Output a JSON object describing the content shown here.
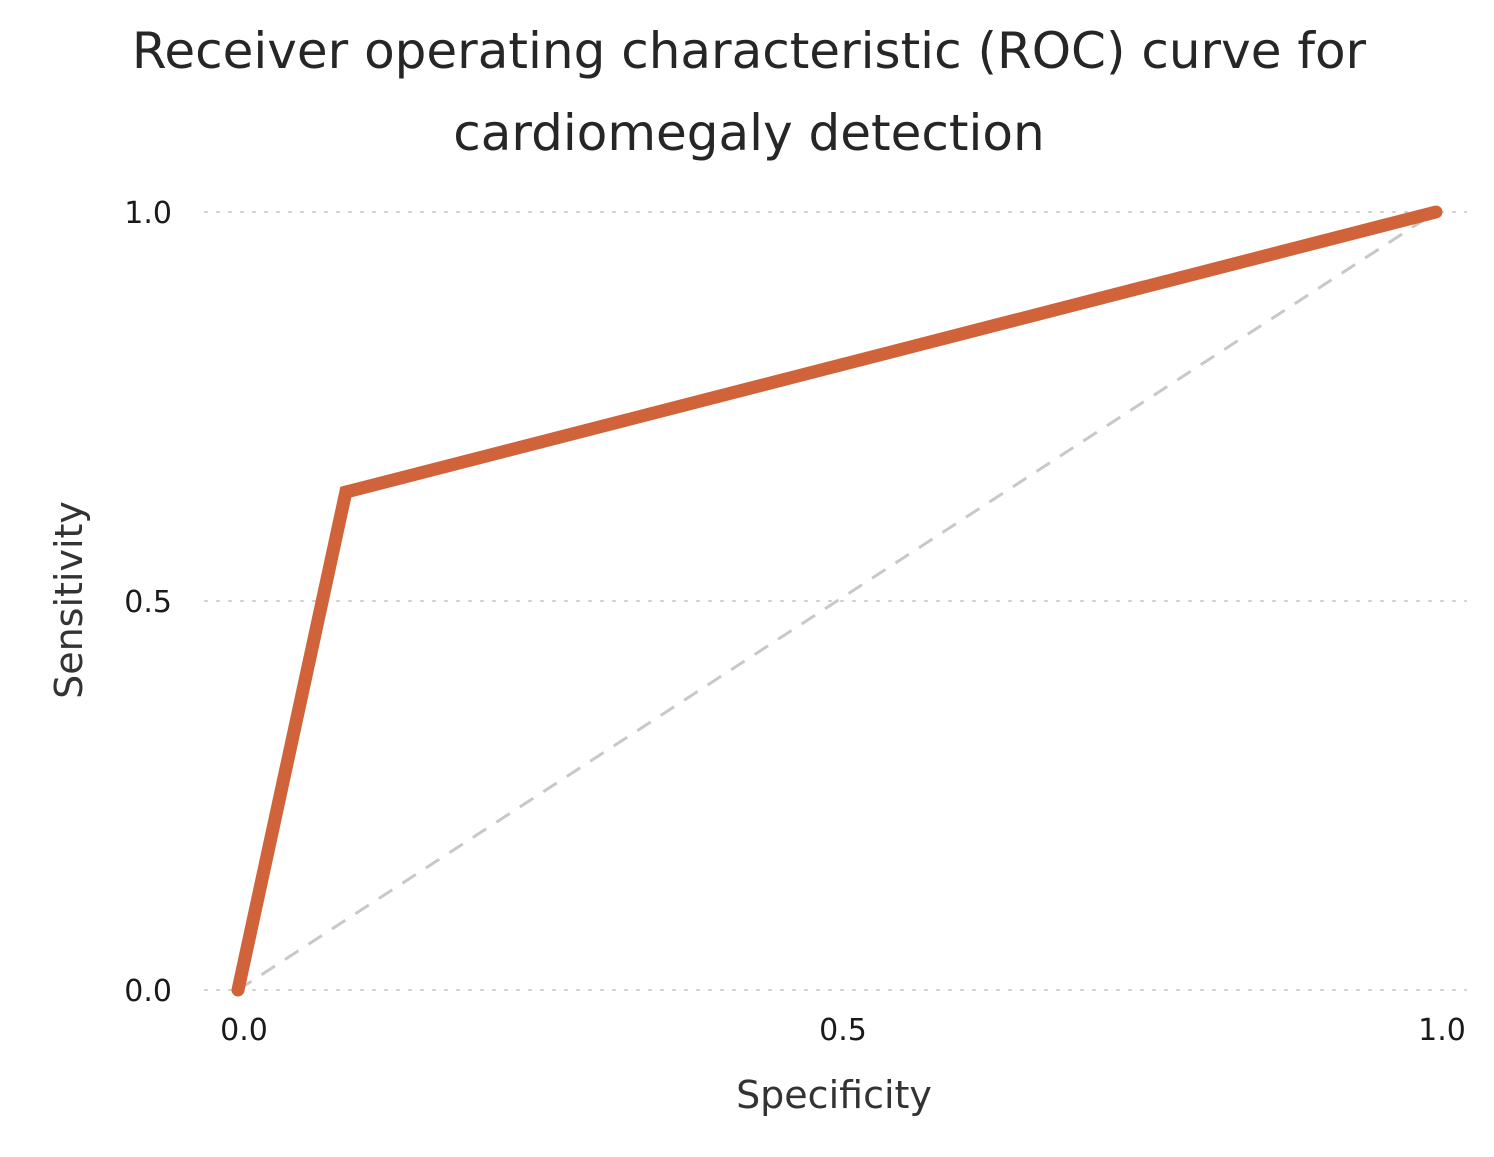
{
  "chart_data": {
    "type": "line",
    "title": [
      "Receiver operating characteristic (ROC) curve for",
      "cardiomegaly detection"
    ],
    "xlabel": "Specificity",
    "ylabel": "Sensitivity",
    "xlim": [
      0,
      1
    ],
    "ylim": [
      0,
      1
    ],
    "x_ticks": [
      {
        "value": 0.0,
        "label": "0.0"
      },
      {
        "value": 0.5,
        "label": "0.5"
      },
      {
        "value": 1.0,
        "label": "1.0"
      }
    ],
    "y_ticks": [
      {
        "value": 0.0,
        "label": "0.0"
      },
      {
        "value": 0.5,
        "label": "0.5"
      },
      {
        "value": 1.0,
        "label": "1.0"
      }
    ],
    "grid": "horizontal-dotted",
    "series": [
      {
        "name": "ROC curve",
        "color": "#d0633a",
        "x": [
          0.0,
          0.09,
          1.0
        ],
        "y": [
          0.0,
          0.64,
          1.0
        ]
      }
    ],
    "reference_line": {
      "name": "chance diagonal",
      "color": "#c8c8c8",
      "x": [
        0.0,
        1.0
      ],
      "y": [
        0.0,
        1.0
      ]
    }
  }
}
